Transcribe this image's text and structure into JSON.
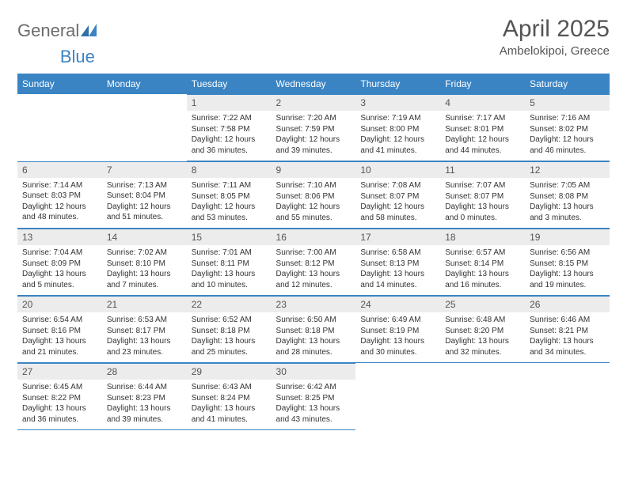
{
  "logo": {
    "part1": "General",
    "part2": "Blue"
  },
  "title": "April 2025",
  "location": "Ambelokipoi, Greece",
  "colors": {
    "header_bg": "#3a84c4",
    "header_text": "#ffffff",
    "daynum_bg": "#ececec",
    "border": "#3a84c4",
    "title_color": "#555555",
    "body_text": "#333333",
    "logo_gray": "#6b6b6b",
    "logo_blue": "#3a84c4"
  },
  "day_headers": [
    "Sunday",
    "Monday",
    "Tuesday",
    "Wednesday",
    "Thursday",
    "Friday",
    "Saturday"
  ],
  "weeks": [
    [
      null,
      null,
      {
        "n": "1",
        "sunrise": "Sunrise: 7:22 AM",
        "sunset": "Sunset: 7:58 PM",
        "daylight": "Daylight: 12 hours and 36 minutes."
      },
      {
        "n": "2",
        "sunrise": "Sunrise: 7:20 AM",
        "sunset": "Sunset: 7:59 PM",
        "daylight": "Daylight: 12 hours and 39 minutes."
      },
      {
        "n": "3",
        "sunrise": "Sunrise: 7:19 AM",
        "sunset": "Sunset: 8:00 PM",
        "daylight": "Daylight: 12 hours and 41 minutes."
      },
      {
        "n": "4",
        "sunrise": "Sunrise: 7:17 AM",
        "sunset": "Sunset: 8:01 PM",
        "daylight": "Daylight: 12 hours and 44 minutes."
      },
      {
        "n": "5",
        "sunrise": "Sunrise: 7:16 AM",
        "sunset": "Sunset: 8:02 PM",
        "daylight": "Daylight: 12 hours and 46 minutes."
      }
    ],
    [
      {
        "n": "6",
        "sunrise": "Sunrise: 7:14 AM",
        "sunset": "Sunset: 8:03 PM",
        "daylight": "Daylight: 12 hours and 48 minutes."
      },
      {
        "n": "7",
        "sunrise": "Sunrise: 7:13 AM",
        "sunset": "Sunset: 8:04 PM",
        "daylight": "Daylight: 12 hours and 51 minutes."
      },
      {
        "n": "8",
        "sunrise": "Sunrise: 7:11 AM",
        "sunset": "Sunset: 8:05 PM",
        "daylight": "Daylight: 12 hours and 53 minutes."
      },
      {
        "n": "9",
        "sunrise": "Sunrise: 7:10 AM",
        "sunset": "Sunset: 8:06 PM",
        "daylight": "Daylight: 12 hours and 55 minutes."
      },
      {
        "n": "10",
        "sunrise": "Sunrise: 7:08 AM",
        "sunset": "Sunset: 8:07 PM",
        "daylight": "Daylight: 12 hours and 58 minutes."
      },
      {
        "n": "11",
        "sunrise": "Sunrise: 7:07 AM",
        "sunset": "Sunset: 8:07 PM",
        "daylight": "Daylight: 13 hours and 0 minutes."
      },
      {
        "n": "12",
        "sunrise": "Sunrise: 7:05 AM",
        "sunset": "Sunset: 8:08 PM",
        "daylight": "Daylight: 13 hours and 3 minutes."
      }
    ],
    [
      {
        "n": "13",
        "sunrise": "Sunrise: 7:04 AM",
        "sunset": "Sunset: 8:09 PM",
        "daylight": "Daylight: 13 hours and 5 minutes."
      },
      {
        "n": "14",
        "sunrise": "Sunrise: 7:02 AM",
        "sunset": "Sunset: 8:10 PM",
        "daylight": "Daylight: 13 hours and 7 minutes."
      },
      {
        "n": "15",
        "sunrise": "Sunrise: 7:01 AM",
        "sunset": "Sunset: 8:11 PM",
        "daylight": "Daylight: 13 hours and 10 minutes."
      },
      {
        "n": "16",
        "sunrise": "Sunrise: 7:00 AM",
        "sunset": "Sunset: 8:12 PM",
        "daylight": "Daylight: 13 hours and 12 minutes."
      },
      {
        "n": "17",
        "sunrise": "Sunrise: 6:58 AM",
        "sunset": "Sunset: 8:13 PM",
        "daylight": "Daylight: 13 hours and 14 minutes."
      },
      {
        "n": "18",
        "sunrise": "Sunrise: 6:57 AM",
        "sunset": "Sunset: 8:14 PM",
        "daylight": "Daylight: 13 hours and 16 minutes."
      },
      {
        "n": "19",
        "sunrise": "Sunrise: 6:56 AM",
        "sunset": "Sunset: 8:15 PM",
        "daylight": "Daylight: 13 hours and 19 minutes."
      }
    ],
    [
      {
        "n": "20",
        "sunrise": "Sunrise: 6:54 AM",
        "sunset": "Sunset: 8:16 PM",
        "daylight": "Daylight: 13 hours and 21 minutes."
      },
      {
        "n": "21",
        "sunrise": "Sunrise: 6:53 AM",
        "sunset": "Sunset: 8:17 PM",
        "daylight": "Daylight: 13 hours and 23 minutes."
      },
      {
        "n": "22",
        "sunrise": "Sunrise: 6:52 AM",
        "sunset": "Sunset: 8:18 PM",
        "daylight": "Daylight: 13 hours and 25 minutes."
      },
      {
        "n": "23",
        "sunrise": "Sunrise: 6:50 AM",
        "sunset": "Sunset: 8:18 PM",
        "daylight": "Daylight: 13 hours and 28 minutes."
      },
      {
        "n": "24",
        "sunrise": "Sunrise: 6:49 AM",
        "sunset": "Sunset: 8:19 PM",
        "daylight": "Daylight: 13 hours and 30 minutes."
      },
      {
        "n": "25",
        "sunrise": "Sunrise: 6:48 AM",
        "sunset": "Sunset: 8:20 PM",
        "daylight": "Daylight: 13 hours and 32 minutes."
      },
      {
        "n": "26",
        "sunrise": "Sunrise: 6:46 AM",
        "sunset": "Sunset: 8:21 PM",
        "daylight": "Daylight: 13 hours and 34 minutes."
      }
    ],
    [
      {
        "n": "27",
        "sunrise": "Sunrise: 6:45 AM",
        "sunset": "Sunset: 8:22 PM",
        "daylight": "Daylight: 13 hours and 36 minutes."
      },
      {
        "n": "28",
        "sunrise": "Sunrise: 6:44 AM",
        "sunset": "Sunset: 8:23 PM",
        "daylight": "Daylight: 13 hours and 39 minutes."
      },
      {
        "n": "29",
        "sunrise": "Sunrise: 6:43 AM",
        "sunset": "Sunset: 8:24 PM",
        "daylight": "Daylight: 13 hours and 41 minutes."
      },
      {
        "n": "30",
        "sunrise": "Sunrise: 6:42 AM",
        "sunset": "Sunset: 8:25 PM",
        "daylight": "Daylight: 13 hours and 43 minutes."
      },
      null,
      null,
      null
    ]
  ]
}
